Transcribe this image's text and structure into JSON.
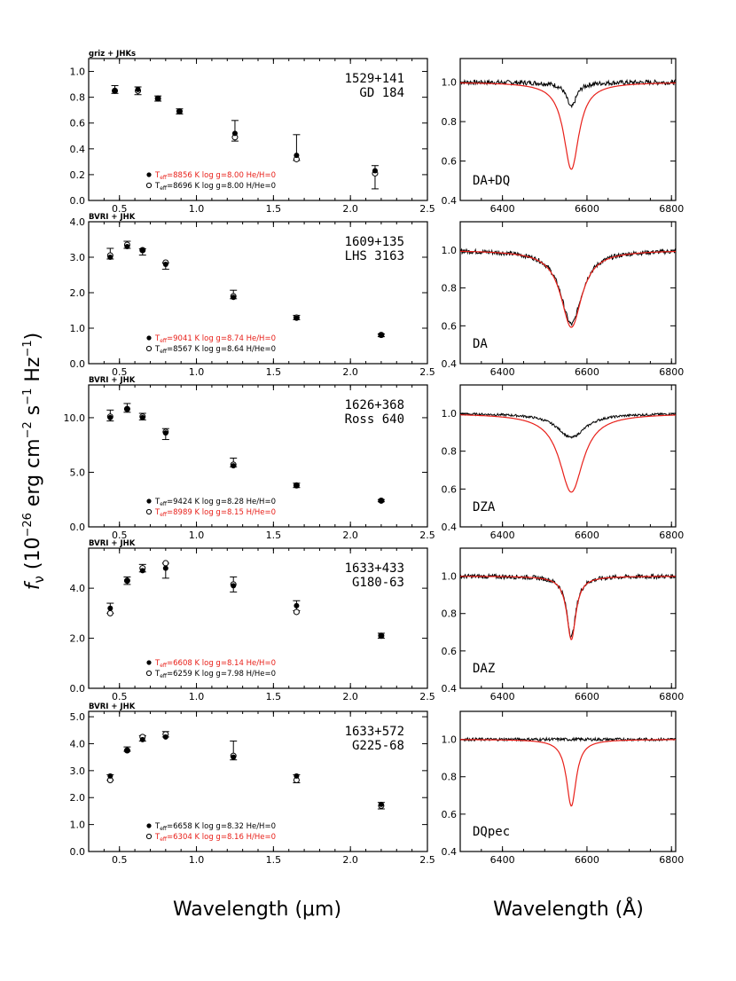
{
  "figure": {
    "ylabel_main": "f",
    "ylabel_sub": "ν",
    "ylabel_rest": " (10",
    "ylabel_exp1": "−26",
    "ylabel_mid1": " erg cm",
    "ylabel_exp2": "−2",
    "ylabel_mid2": " s",
    "ylabel_exp3": "−1",
    "ylabel_mid3": " Hz",
    "ylabel_exp4": "−1",
    "ylabel_end": ")",
    "xlabel_left": "Wavelength (μm)",
    "xlabel_right": "Wavelength (Å)"
  },
  "chart_data": [
    {
      "type": "scatter",
      "photometry_label": "griz + JHKs",
      "object_id": "1529+141",
      "object_name": "GD 184",
      "xlim": [
        0.3,
        2.5
      ],
      "ylim": [
        0.0,
        1.1
      ],
      "xticks": [
        0.5,
        1.0,
        1.5,
        2.0,
        2.5
      ],
      "xtick_labels": [
        "0.5",
        "1.0",
        "1.5",
        "2.0",
        "2.5"
      ],
      "yticks": [
        0.0,
        0.2,
        0.4,
        0.6,
        0.8,
        1.0
      ],
      "ytick_labels": [
        "0.0",
        "0.2",
        "0.4",
        "0.6",
        "0.8",
        "1.0"
      ],
      "observed": [
        {
          "x": 0.47,
          "y": 0.86,
          "err": 0.03
        },
        {
          "x": 0.62,
          "y": 0.85,
          "err": 0.03
        },
        {
          "x": 0.75,
          "y": 0.79,
          "err": 0.02
        },
        {
          "x": 0.89,
          "y": 0.69,
          "err": 0.02
        },
        {
          "x": 1.25,
          "y": 0.54,
          "err": 0.08
        },
        {
          "x": 1.65,
          "y": 0.41,
          "err": 0.1
        },
        {
          "x": 2.16,
          "y": 0.18,
          "err": 0.09
        }
      ],
      "model1_filled": [
        0.85,
        0.86,
        0.79,
        0.69,
        0.52,
        0.35,
        0.23
      ],
      "model2_open": [
        0.85,
        0.85,
        0.79,
        0.69,
        0.49,
        0.32,
        0.21
      ],
      "legend": [
        {
          "marker": "filled",
          "color": "#e8201a",
          "teff_label": "T",
          "teff_sub": "eff",
          "text": "=8856 K  log g=8.00  He/H=0"
        },
        {
          "marker": "open",
          "color": "#000000",
          "teff_label": "T",
          "teff_sub": "eff",
          "text": "=8696 K  log g=8.00  H/He=0"
        }
      ],
      "spectrum": {
        "type": "line",
        "label": "DA+DQ",
        "xlim": [
          6300,
          6810
        ],
        "ylim": [
          0.4,
          1.12
        ],
        "xticks": [
          6400,
          6600,
          6800
        ],
        "xtick_labels": [
          "6400",
          "6600",
          "6800"
        ],
        "yticks": [
          0.4,
          0.6,
          0.8,
          1.0
        ],
        "ytick_labels": [
          "0.4",
          "0.6",
          "0.8",
          "1.0"
        ],
        "center": 6563,
        "model": {
          "depth": 0.52,
          "width": 22.0,
          "color": "#e8201a"
        },
        "observed": {
          "depth": 0.15,
          "width": 14.0,
          "noise": 0.012,
          "color": "#000000"
        }
      }
    },
    {
      "type": "scatter",
      "photometry_label": "BVRI + JHK",
      "object_id": "1609+135",
      "object_name": "LHS 3163",
      "xlim": [
        0.3,
        2.5
      ],
      "ylim": [
        0.0,
        4.0
      ],
      "xticks": [
        0.5,
        1.0,
        1.5,
        2.0,
        2.5
      ],
      "xtick_labels": [
        "0.5",
        "1.0",
        "1.5",
        "2.0",
        "2.5"
      ],
      "yticks": [
        0.0,
        1.0,
        2.0,
        3.0,
        4.0
      ],
      "ytick_labels": [
        "0.0",
        "1.0",
        "2.0",
        "3.0",
        "4.0"
      ],
      "observed": [
        {
          "x": 0.44,
          "y": 3.1,
          "err": 0.15
        },
        {
          "x": 0.55,
          "y": 3.35,
          "err": 0.1
        },
        {
          "x": 0.65,
          "y": 3.15,
          "err": 0.09
        },
        {
          "x": 0.8,
          "y": 2.75,
          "err": 0.09
        },
        {
          "x": 1.24,
          "y": 1.95,
          "err": 0.12
        },
        {
          "x": 1.65,
          "y": 1.3,
          "err": 0.06
        },
        {
          "x": 2.2,
          "y": 0.8,
          "err": 0.04
        }
      ],
      "model1_filled": [
        3.0,
        3.3,
        3.2,
        2.8,
        1.87,
        1.28,
        0.8
      ],
      "model2_open": [
        3.05,
        3.35,
        3.2,
        2.85,
        1.9,
        1.3,
        0.81
      ],
      "legend": [
        {
          "marker": "filled",
          "color": "#e8201a",
          "teff_label": "T",
          "teff_sub": "eff",
          "text": "=9041 K  log g=8.74  He/H=0"
        },
        {
          "marker": "open",
          "color": "#000000",
          "teff_label": "T",
          "teff_sub": "eff",
          "text": "=8567 K  log g=8.64  H/He=0"
        }
      ],
      "spectrum": {
        "type": "line",
        "label": "DA",
        "xlim": [
          6300,
          6810
        ],
        "ylim": [
          0.4,
          1.15
        ],
        "xticks": [
          6400,
          6600,
          6800
        ],
        "xtick_labels": [
          "6400",
          "6600",
          "6800"
        ],
        "yticks": [
          0.4,
          0.6,
          0.8,
          1.0
        ],
        "ytick_labels": [
          "0.4",
          "0.6",
          "0.8",
          "1.0"
        ],
        "center": 6563,
        "model": {
          "depth": 0.48,
          "width": 30.0,
          "color": "#e8201a"
        },
        "observed": {
          "depth": 0.46,
          "width": 30.0,
          "noise": 0.012,
          "color": "#000000"
        }
      }
    },
    {
      "type": "scatter",
      "photometry_label": "BVRI + JHK",
      "object_id": "1626+368",
      "object_name": "Ross 640",
      "xlim": [
        0.3,
        2.5
      ],
      "ylim": [
        0.0,
        13.0
      ],
      "xticks": [
        0.5,
        1.0,
        1.5,
        2.0,
        2.5
      ],
      "xtick_labels": [
        "0.5",
        "1.0",
        "1.5",
        "2.0",
        "2.5"
      ],
      "yticks": [
        0.0,
        5.0,
        10.0
      ],
      "ytick_labels": [
        "0.0",
        "5.0",
        "10.0"
      ],
      "observed": [
        {
          "x": 0.44,
          "y": 10.2,
          "err": 0.5
        },
        {
          "x": 0.55,
          "y": 10.9,
          "err": 0.4
        },
        {
          "x": 0.65,
          "y": 10.1,
          "err": 0.3
        },
        {
          "x": 0.8,
          "y": 8.5,
          "err": 0.5
        },
        {
          "x": 1.24,
          "y": 5.9,
          "err": 0.4
        },
        {
          "x": 1.65,
          "y": 3.8,
          "err": 0.2
        },
        {
          "x": 2.2,
          "y": 2.4,
          "err": 0.1
        }
      ],
      "model1_filled": [
        10.0,
        10.8,
        10.0,
        8.6,
        5.6,
        3.8,
        2.4
      ],
      "model2_open": [
        10.1,
        10.8,
        10.1,
        8.7,
        5.7,
        3.8,
        2.4
      ],
      "legend": [
        {
          "marker": "filled",
          "color": "#000000",
          "teff_label": "T",
          "teff_sub": "eff",
          "text": "=9424 K  log g=8.28  He/H=0"
        },
        {
          "marker": "open",
          "color": "#e8201a",
          "teff_label": "T",
          "teff_sub": "eff",
          "text": "=8989 K  log g=8.15  H/He=0"
        }
      ],
      "spectrum": {
        "type": "line",
        "label": "DZA",
        "xlim": [
          6300,
          6810
        ],
        "ylim": [
          0.4,
          1.15
        ],
        "xticks": [
          6400,
          6600,
          6800
        ],
        "xtick_labels": [
          "6400",
          "6600",
          "6800"
        ],
        "yticks": [
          0.4,
          0.6,
          0.8,
          1.0
        ],
        "ytick_labels": [
          "0.4",
          "0.6",
          "0.8",
          "1.0"
        ],
        "center": 6563,
        "model": {
          "depth": 0.49,
          "width": 34.0,
          "color": "#e8201a"
        },
        "observed": {
          "depth": 0.15,
          "width": 40.0,
          "noise": 0.006,
          "color": "#000000"
        }
      }
    },
    {
      "type": "scatter",
      "photometry_label": "BVRI + JHK",
      "object_id": "1633+433",
      "object_name": "G180-63",
      "xlim": [
        0.3,
        2.5
      ],
      "ylim": [
        0.0,
        5.6
      ],
      "xticks": [
        0.5,
        1.0,
        1.5,
        2.0,
        2.5
      ],
      "xtick_labels": [
        "0.5",
        "1.0",
        "1.5",
        "2.0",
        "2.5"
      ],
      "yticks": [
        0.0,
        2.0,
        4.0
      ],
      "ytick_labels": [
        "0.0",
        "2.0",
        "4.0"
      ],
      "observed": [
        {
          "x": 0.44,
          "y": 3.2,
          "err": 0.2
        },
        {
          "x": 0.55,
          "y": 4.3,
          "err": 0.15
        },
        {
          "x": 0.65,
          "y": 4.8,
          "err": 0.15
        },
        {
          "x": 0.8,
          "y": 4.7,
          "err": 0.3
        },
        {
          "x": 1.24,
          "y": 4.15,
          "err": 0.3
        },
        {
          "x": 1.65,
          "y": 3.3,
          "err": 0.2
        },
        {
          "x": 2.2,
          "y": 2.1,
          "err": 0.1
        }
      ],
      "model1_filled": [
        3.2,
        4.3,
        4.7,
        4.8,
        4.1,
        3.3,
        2.1
      ],
      "model2_open": [
        3.0,
        4.3,
        4.8,
        5.0,
        4.15,
        3.05,
        2.1
      ],
      "legend": [
        {
          "marker": "filled",
          "color": "#e8201a",
          "teff_label": "T",
          "teff_sub": "eff",
          "text": "=6608 K  log g=8.14  He/H=0"
        },
        {
          "marker": "open",
          "color": "#000000",
          "teff_label": "T",
          "teff_sub": "eff",
          "text": "=6259 K  log g=7.98  H/He=0"
        }
      ],
      "spectrum": {
        "type": "line",
        "label": "DAZ",
        "xlim": [
          6300,
          6810
        ],
        "ylim": [
          0.4,
          1.15
        ],
        "xticks": [
          6400,
          6600,
          6800
        ],
        "xtick_labels": [
          "6400",
          "6600",
          "6800"
        ],
        "yticks": [
          0.4,
          0.6,
          0.8,
          1.0
        ],
        "ytick_labels": [
          "0.4",
          "0.6",
          "0.8",
          "1.0"
        ],
        "center": 6563,
        "model": {
          "depth": 0.4,
          "width": 13.0,
          "color": "#e8201a"
        },
        "observed": {
          "depth": 0.38,
          "width": 13.0,
          "noise": 0.012,
          "color": "#000000"
        }
      }
    },
    {
      "type": "scatter",
      "photometry_label": "BVRI + JHK",
      "object_id": "1633+572",
      "object_name": "G225-68",
      "xlim": [
        0.3,
        2.5
      ],
      "ylim": [
        0.0,
        5.2
      ],
      "xticks": [
        0.5,
        1.0,
        1.5,
        2.0,
        2.5
      ],
      "xtick_labels": [
        "0.5",
        "1.0",
        "1.5",
        "2.0",
        "2.5"
      ],
      "yticks": [
        0.0,
        1.0,
        2.0,
        3.0,
        4.0,
        5.0
      ],
      "ytick_labels": [
        "0.0",
        "1.0",
        "2.0",
        "3.0",
        "4.0",
        "5.0"
      ],
      "observed": [
        {
          "x": 0.44,
          "y": 2.75,
          "err": 0.1
        },
        {
          "x": 0.55,
          "y": 3.8,
          "err": 0.08
        },
        {
          "x": 0.65,
          "y": 4.2,
          "err": 0.1
        },
        {
          "x": 0.8,
          "y": 4.35,
          "err": 0.1
        },
        {
          "x": 1.24,
          "y": 3.75,
          "err": 0.35
        },
        {
          "x": 1.65,
          "y": 2.7,
          "err": 0.15
        },
        {
          "x": 2.2,
          "y": 1.7,
          "err": 0.12
        }
      ],
      "model1_filled": [
        2.8,
        3.75,
        4.15,
        4.25,
        3.5,
        2.8,
        1.75
      ],
      "model2_open": [
        2.65,
        3.75,
        4.25,
        4.35,
        3.55,
        2.65,
        1.7
      ],
      "legend": [
        {
          "marker": "filled",
          "color": "#000000",
          "teff_label": "T",
          "teff_sub": "eff",
          "text": "=6658 K  log g=8.32  He/H=0"
        },
        {
          "marker": "open",
          "color": "#e8201a",
          "teff_label": "T",
          "teff_sub": "eff",
          "text": "=6304 K  log g=8.16  H/He=0"
        }
      ],
      "spectrum": {
        "type": "line",
        "label": "DQpec",
        "xlim": [
          6300,
          6810
        ],
        "ylim": [
          0.4,
          1.15
        ],
        "xticks": [
          6400,
          6600,
          6800
        ],
        "xtick_labels": [
          "6400",
          "6600",
          "6800"
        ],
        "yticks": [
          0.4,
          0.6,
          0.8,
          1.0
        ],
        "ytick_labels": [
          "0.4",
          "0.6",
          "0.8",
          "1.0"
        ],
        "center": 6563,
        "model": {
          "depth": 0.42,
          "width": 14.0,
          "color": "#e8201a"
        },
        "observed": {
          "depth": 0.0,
          "width": 14.0,
          "noise": 0.008,
          "color": "#000000"
        }
      }
    }
  ]
}
